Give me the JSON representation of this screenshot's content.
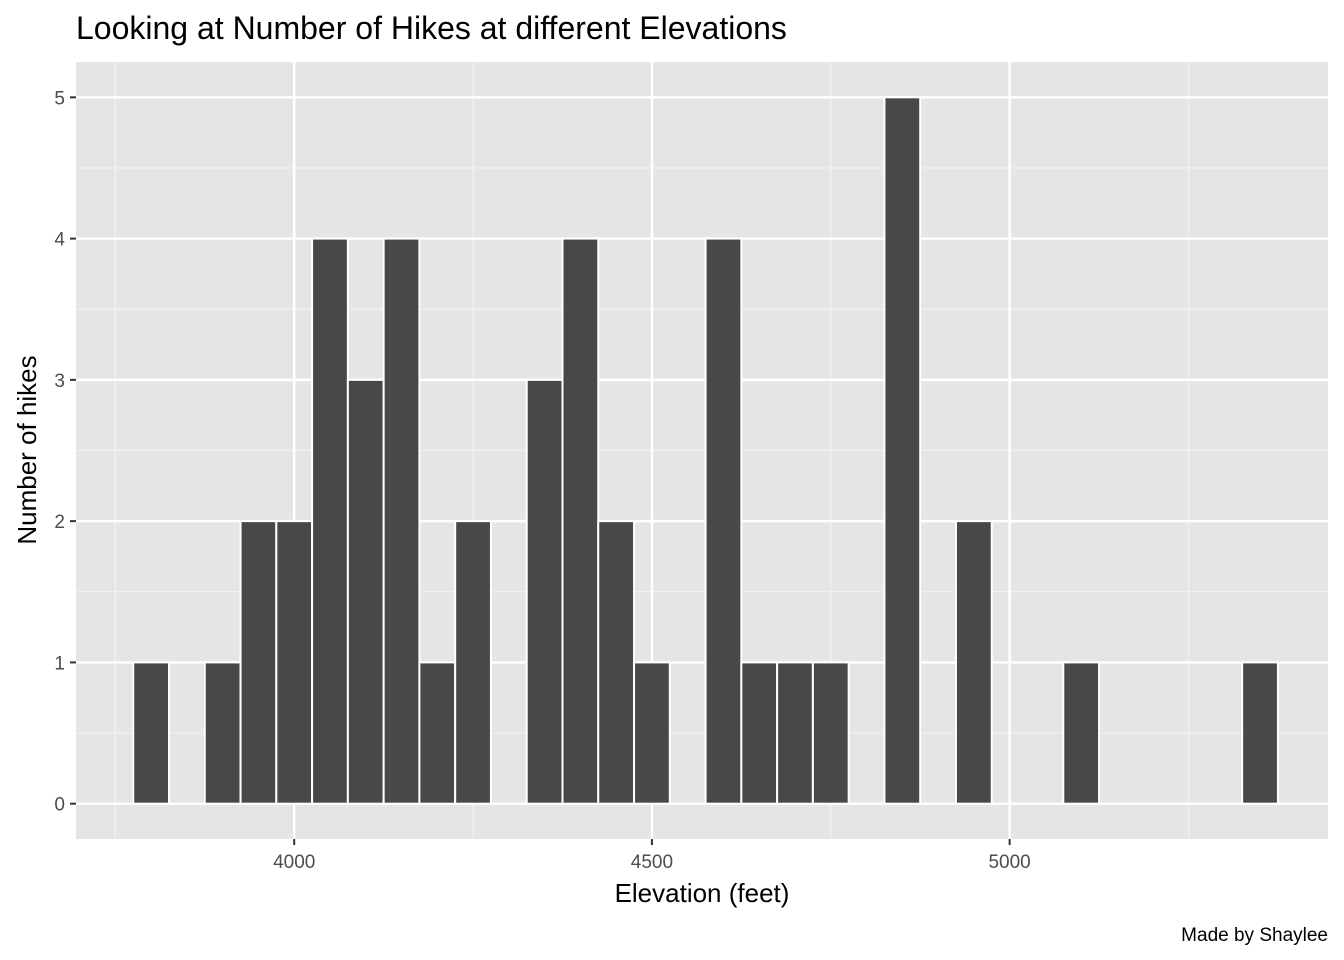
{
  "chart_data": {
    "type": "bar",
    "subtype": "histogram",
    "title": "Looking at Number of Hikes at different Elevations",
    "xlabel": "Elevation (feet)",
    "ylabel": "Number of hikes",
    "caption": "Made by Shaylee",
    "xlim": [
      3695,
      5445
    ],
    "ylim": [
      -0.25,
      5.25
    ],
    "bin_width": 50,
    "x_ticks": [
      4000,
      4500,
      5000
    ],
    "y_ticks": [
      0,
      1,
      2,
      3,
      4,
      5
    ],
    "grid": true,
    "bar_fill": "#484848",
    "bar_outline": "#ffffff",
    "panel_background": "#e5e5e5",
    "bins": [
      {
        "x": 3800,
        "count": 1
      },
      {
        "x": 3900,
        "count": 1
      },
      {
        "x": 3950,
        "count": 2
      },
      {
        "x": 4000,
        "count": 2
      },
      {
        "x": 4050,
        "count": 4
      },
      {
        "x": 4100,
        "count": 3
      },
      {
        "x": 4150,
        "count": 4
      },
      {
        "x": 4200,
        "count": 1
      },
      {
        "x": 4250,
        "count": 2
      },
      {
        "x": 4350,
        "count": 3
      },
      {
        "x": 4400,
        "count": 4
      },
      {
        "x": 4450,
        "count": 2
      },
      {
        "x": 4500,
        "count": 1
      },
      {
        "x": 4600,
        "count": 4
      },
      {
        "x": 4650,
        "count": 1
      },
      {
        "x": 4700,
        "count": 1
      },
      {
        "x": 4750,
        "count": 1
      },
      {
        "x": 4850,
        "count": 5
      },
      {
        "x": 4950,
        "count": 2
      },
      {
        "x": 5100,
        "count": 1
      },
      {
        "x": 5350,
        "count": 1
      }
    ]
  }
}
